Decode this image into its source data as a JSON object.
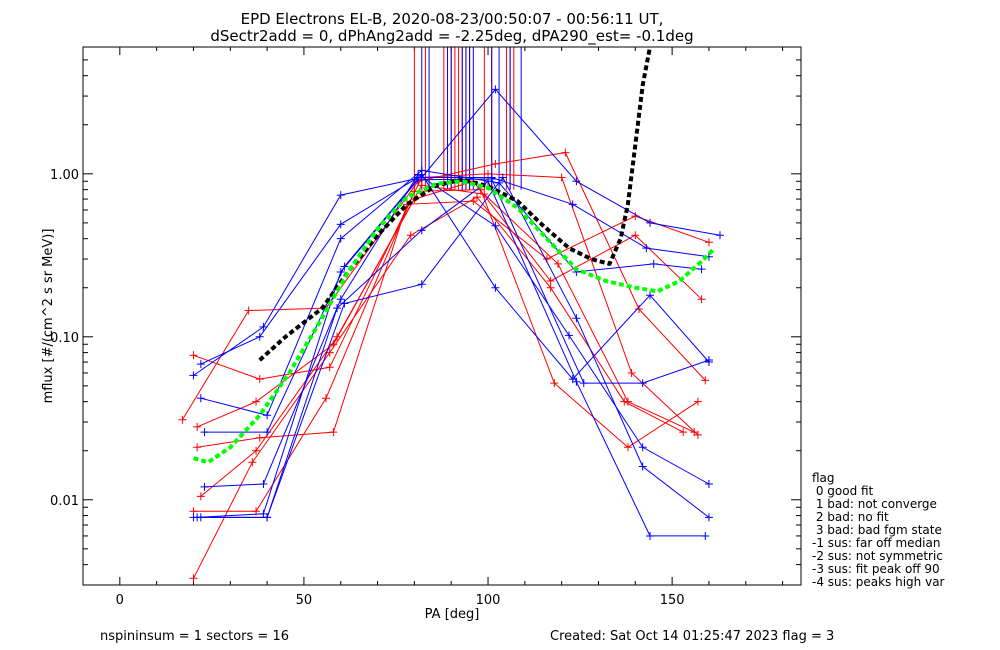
{
  "chart_data": {
    "type": "line",
    "title": "EPD Electrons EL-B, 2020-08-23/00:50:07 - 00:56:11 UT,",
    "subtitle": "dSectr2add = 0, dPhAng2add = -2.25deg, dPA290_est=  -0.1deg",
    "xlabel": "PA [deg]",
    "ylabel": "mflux [#/(cm^2 s sr MeV)]",
    "xlim": [
      -10,
      185
    ],
    "ylim": [
      0.003,
      6
    ],
    "yscale": "log",
    "x_ticks": [
      0,
      50,
      100,
      150
    ],
    "x_tick_labels": [
      "0",
      "50",
      "100",
      "150"
    ],
    "y_ticks": [
      0.01,
      0.1,
      1.0
    ],
    "y_tick_labels": [
      "0.01",
      "0.10",
      "1.00"
    ],
    "colors": {
      "red": "#ff0000",
      "blue": "#0000ff",
      "black": "#000000",
      "green": "#00ff00"
    },
    "series": [
      {
        "color": "red",
        "x": [
          17,
          35,
          56,
          81,
          102,
          121,
          141,
          159
        ],
        "y": [
          0.031,
          0.145,
          0.15,
          0.9,
          1.15,
          1.35,
          0.148,
          0.054
        ]
      },
      {
        "color": "red",
        "x": [
          20,
          38,
          57,
          82,
          100,
          120,
          139,
          157
        ],
        "y": [
          0.077,
          0.055,
          0.065,
          0.95,
          1.0,
          0.95,
          0.06,
          0.025
        ]
      },
      {
        "color": "red",
        "x": [
          21,
          37,
          58,
          82,
          99,
          119,
          138,
          156
        ],
        "y": [
          0.028,
          0.04,
          0.09,
          0.85,
          0.75,
          0.28,
          0.04,
          0.026
        ]
      },
      {
        "color": "red",
        "x": [
          20,
          37,
          56,
          80,
          98,
          118,
          138,
          157
        ],
        "y": [
          0.0085,
          0.0085,
          0.042,
          0.78,
          0.8,
          0.052,
          0.021,
          0.04
        ]
      },
      {
        "color": "red",
        "x": [
          20,
          36,
          57,
          79,
          97,
          117,
          137,
          153
        ],
        "y": [
          0.0033,
          0.017,
          0.08,
          0.42,
          0.72,
          0.2,
          0.04,
          0.026
        ]
      },
      {
        "color": "red",
        "x": [
          21,
          38,
          58,
          78,
          96,
          116,
          140,
          160
        ],
        "y": [
          0.021,
          0.024,
          0.026,
          0.65,
          0.68,
          0.3,
          0.55,
          0.38
        ]
      },
      {
        "color": "red",
        "x": [
          22,
          37,
          59,
          80,
          96,
          117,
          140,
          158
        ],
        "y": [
          0.0105,
          0.02,
          0.1,
          0.7,
          0.9,
          0.22,
          0.42,
          0.17
        ]
      },
      {
        "color": "blue",
        "x": [
          20,
          39,
          60,
          82,
          102,
          124,
          144,
          163
        ],
        "y": [
          0.058,
          0.115,
          0.74,
          0.95,
          3.3,
          0.9,
          0.5,
          0.42
        ]
      },
      {
        "color": "blue",
        "x": [
          22,
          38,
          60,
          81,
          101,
          123,
          143,
          160
        ],
        "y": [
          0.068,
          0.1,
          0.49,
          0.95,
          0.95,
          0.65,
          0.35,
          0.31
        ]
      },
      {
        "color": "blue",
        "x": [
          22,
          40,
          60,
          82,
          103,
          124,
          145,
          158
        ],
        "y": [
          0.042,
          0.033,
          0.4,
          1.05,
          0.88,
          0.25,
          0.28,
          0.26
        ]
      },
      {
        "color": "blue",
        "x": [
          23,
          40,
          61,
          82,
          102,
          123,
          144,
          160
        ],
        "y": [
          0.026,
          0.026,
          0.27,
          0.99,
          0.2,
          0.055,
          0.18,
          0.07
        ]
      },
      {
        "color": "blue",
        "x": [
          23,
          39,
          60,
          81,
          102,
          122,
          142,
          160
        ],
        "y": [
          0.012,
          0.0125,
          0.17,
          0.99,
          0.48,
          0.102,
          0.021,
          0.0125
        ]
      },
      {
        "color": "blue",
        "x": [
          20,
          40,
          61,
          82,
          104,
          124,
          142,
          160
        ],
        "y": [
          0.0078,
          0.0078,
          0.16,
          0.21,
          0.95,
          0.13,
          0.016,
          0.0078
        ]
      },
      {
        "color": "blue",
        "x": [
          22,
          40,
          59,
          82,
          100,
          124,
          144,
          159
        ],
        "y": [
          0.0078,
          0.0078,
          0.15,
          0.45,
          0.9,
          0.053,
          0.006,
          0.006
        ]
      },
      {
        "color": "blue",
        "x": [
          21,
          39,
          60,
          81,
          101,
          126,
          142,
          160
        ],
        "y": [
          0.0078,
          0.0082,
          0.25,
          0.92,
          0.93,
          0.052,
          0.052,
          0.072
        ]
      }
    ],
    "median_lines": {
      "red_x": [
        80,
        83,
        88,
        90,
        91,
        92,
        93,
        94,
        95,
        99,
        101,
        105,
        106,
        107
      ],
      "blue_x": [
        82,
        84,
        89,
        90,
        93,
        94,
        95,
        96,
        101,
        103,
        106,
        109
      ],
      "y_top": 6,
      "y_bottom": 0.8
    },
    "fits": [
      {
        "style": "black-dashed",
        "x": [
          38,
          45,
          55,
          62,
          70,
          78,
          86,
          93,
          100,
          108,
          115,
          122,
          128,
          133,
          136,
          138,
          140,
          142,
          144
        ],
        "y": [
          0.072,
          0.1,
          0.15,
          0.25,
          0.42,
          0.65,
          0.85,
          0.92,
          0.84,
          0.68,
          0.48,
          0.35,
          0.3,
          0.28,
          0.4,
          0.65,
          1.5,
          3.5,
          6
        ]
      },
      {
        "style": "green-dashed",
        "x": [
          20,
          24,
          30,
          38,
          46,
          54,
          62,
          70,
          78,
          86,
          93,
          100,
          108,
          116,
          124,
          132,
          140,
          146,
          152,
          158,
          161
        ],
        "y": [
          0.018,
          0.017,
          0.021,
          0.033,
          0.06,
          0.12,
          0.25,
          0.46,
          0.72,
          0.87,
          0.9,
          0.82,
          0.62,
          0.4,
          0.26,
          0.22,
          0.2,
          0.19,
          0.22,
          0.29,
          0.34
        ]
      }
    ]
  },
  "legend": {
    "title": "flag",
    "items": [
      " 0 good fit",
      " 1 bad: not converge",
      " 2 bad: no fit",
      " 3 bad: bad fgm state",
      "-1 sus: far off median",
      "-2 sus: not symmetric",
      "-3 sus: fit peak off 90",
      "-4 sus: peaks high var"
    ]
  },
  "footer": {
    "left": "nspininsum =  1  sectors = 16",
    "right": "Created: Sat Oct 14 01:25:47 2023   flag = 3"
  }
}
